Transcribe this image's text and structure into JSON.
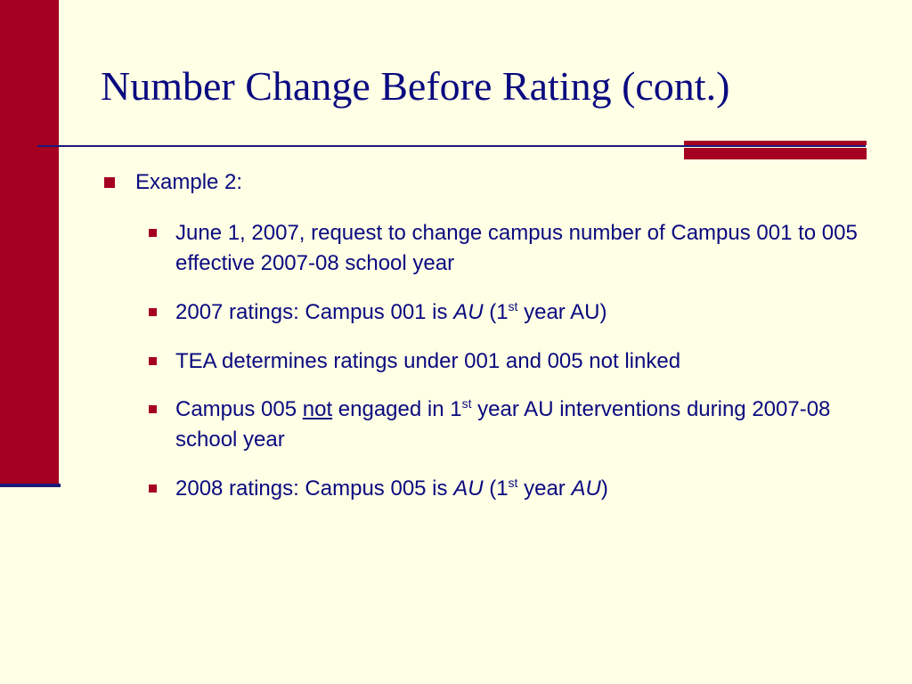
{
  "slide": {
    "title": "Number Change Before Rating (cont.)",
    "heading": "Example 2:",
    "bullets": {
      "b1": "June 1, 2007, request to change campus number of Campus 001 to 005 effective 2007-08 school year",
      "b2": {
        "a": "2007 ratings: Campus 001 is ",
        "au": "AU",
        "b": " (1",
        "sup": "st",
        "c": " year AU)"
      },
      "b3": "TEA determines ratings under 001 and 005 not linked",
      "b4": {
        "a": "Campus 005 ",
        "not": "not",
        "b": " engaged in 1",
        "sup": "st",
        "c": " year AU interventions during 2007-08 school year"
      },
      "b5": {
        "a": "2008 ratings:  Campus 005 is ",
        "au": "AU",
        "b": " (1",
        "sup": "st",
        "c": " year ",
        "au2": "AU",
        "d": ")"
      }
    }
  },
  "colors": {
    "background": "#FFFFE5",
    "accent": "#A50021",
    "text": "#0A0A80"
  }
}
